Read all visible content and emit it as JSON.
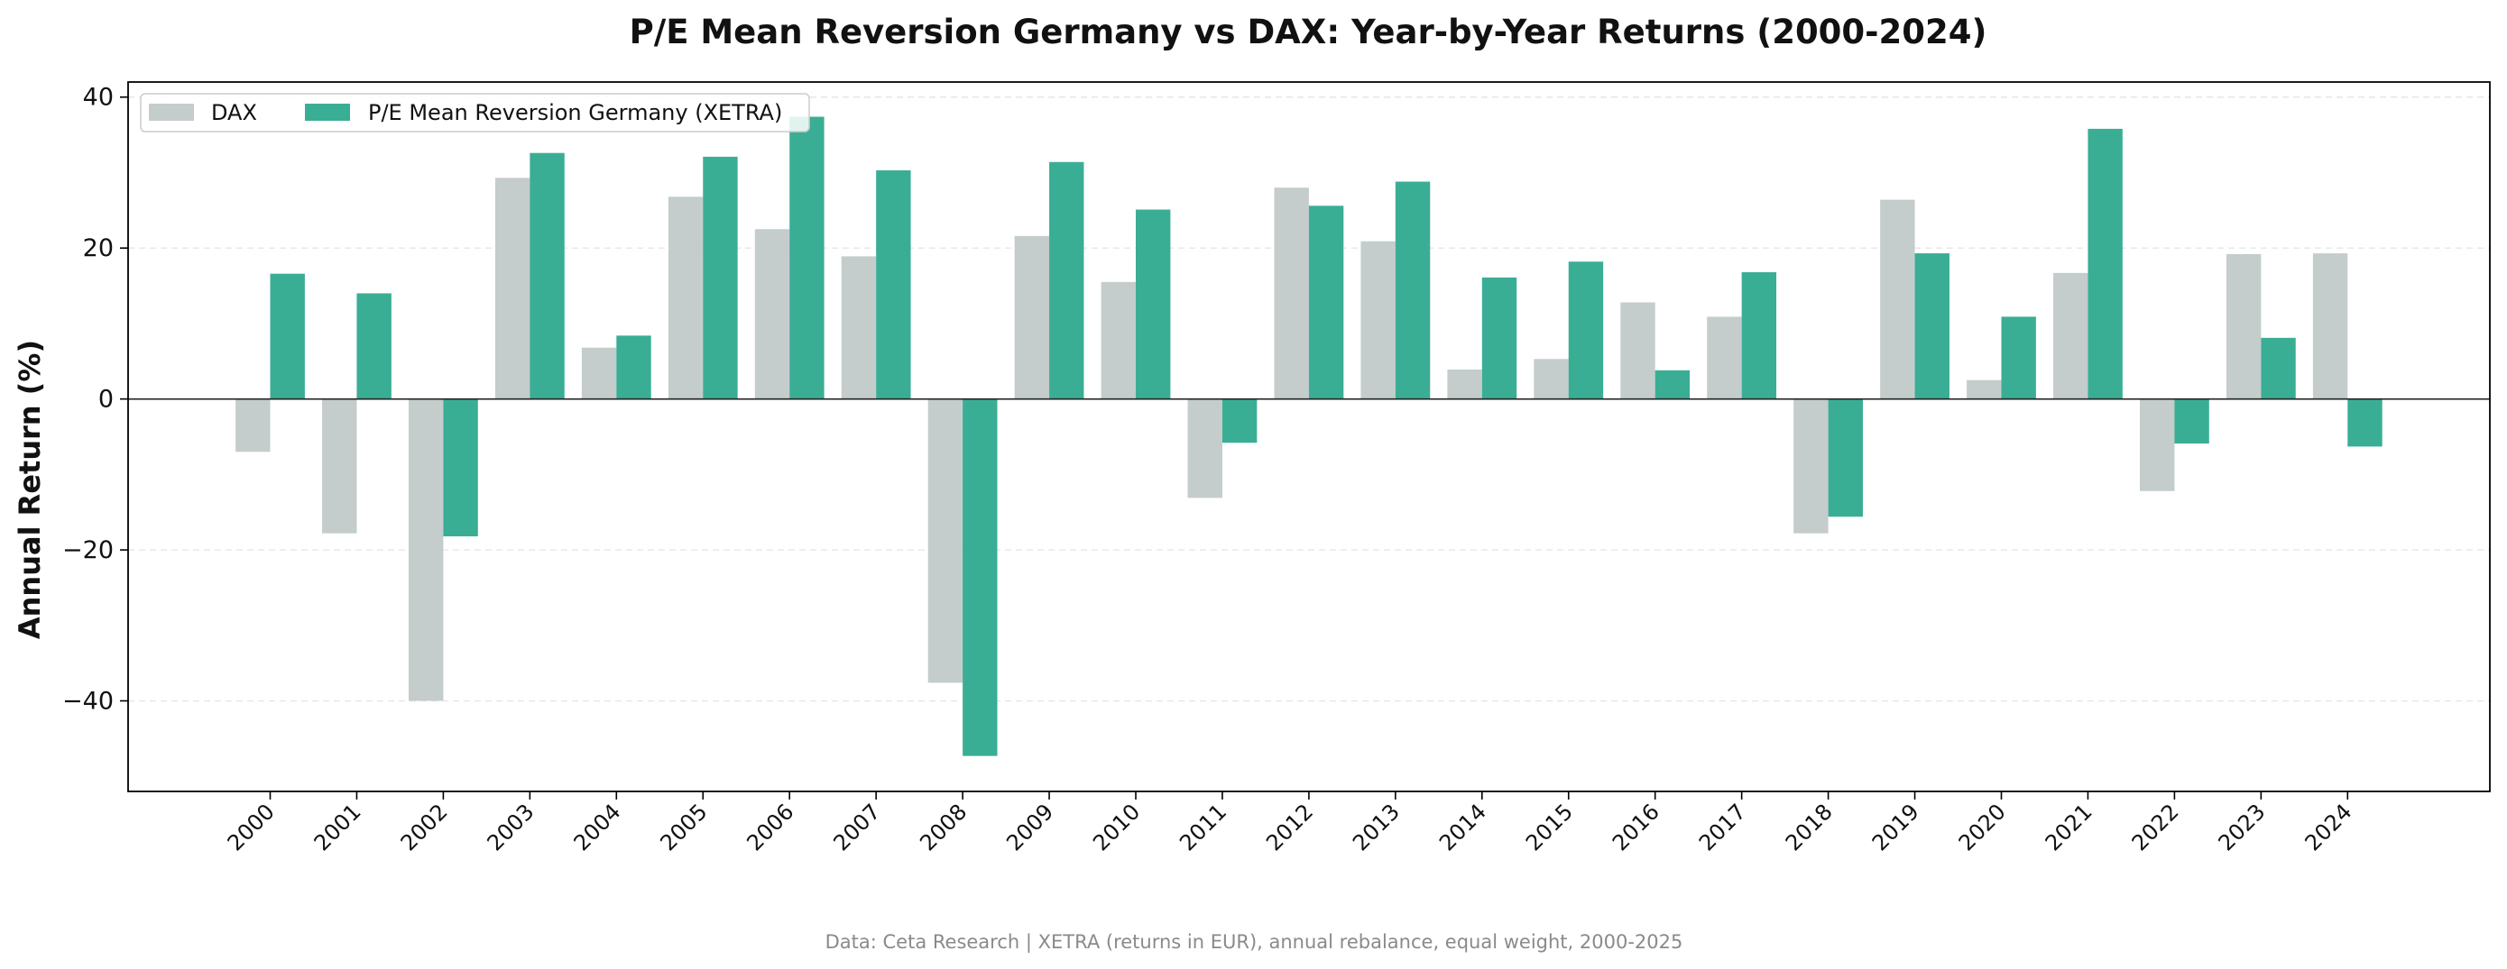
{
  "chart_data": {
    "type": "bar",
    "title": "P/E Mean Reversion Germany vs DAX: Year-by-Year Returns (2000-2024)",
    "xlabel": "",
    "ylabel": "Annual Return (%)",
    "ylim": [
      -52,
      42
    ],
    "yticks": [
      -40,
      -20,
      0,
      20,
      40
    ],
    "yticklabels": [
      "−40",
      "−20",
      "0",
      "20",
      "40"
    ],
    "grid": true,
    "legend_position": "top-left",
    "categories": [
      "2000",
      "2001",
      "2002",
      "2003",
      "2004",
      "2005",
      "2006",
      "2007",
      "2008",
      "2009",
      "2010",
      "2011",
      "2012",
      "2013",
      "2014",
      "2015",
      "2016",
      "2017",
      "2018",
      "2019",
      "2020",
      "2021",
      "2022",
      "2023",
      "2024"
    ],
    "series": [
      {
        "name": "DAX",
        "color": "#c4cccc",
        "values": [
          -7.0,
          -17.8,
          -40.0,
          29.3,
          6.8,
          26.8,
          22.5,
          18.9,
          -37.6,
          21.6,
          15.5,
          -13.1,
          28.0,
          20.9,
          3.9,
          5.3,
          12.8,
          10.9,
          -17.8,
          26.4,
          2.5,
          16.7,
          -12.2,
          19.2,
          19.3
        ]
      },
      {
        "name": "P/E Mean Reversion Germany (XETRA)",
        "color": "#3aae94",
        "values": [
          16.6,
          14.0,
          -18.2,
          32.6,
          8.4,
          32.1,
          37.4,
          30.3,
          -47.3,
          31.4,
          25.1,
          -5.8,
          25.6,
          28.8,
          16.1,
          18.2,
          3.8,
          16.8,
          -15.6,
          19.3,
          10.9,
          35.8,
          -5.9,
          8.1,
          -6.3
        ]
      }
    ],
    "source_note": "Data: Ceta Research | XETRA (returns in EUR), annual rebalance, equal weight, 2000-2025"
  }
}
